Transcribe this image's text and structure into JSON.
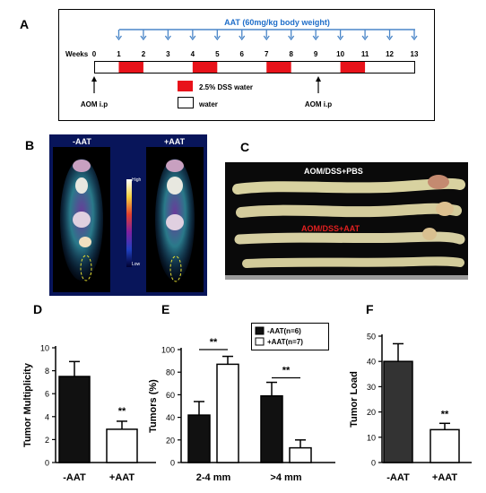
{
  "panel_labels": {
    "a": "A",
    "b": "B",
    "c": "C",
    "d": "D",
    "e": "E",
    "f": "F"
  },
  "schedule": {
    "aat_label": "AAT (60mg/kg body weight)",
    "weeks_label": "Weeks",
    "weeks": [
      "0",
      "1",
      "2",
      "3",
      "4",
      "5",
      "6",
      "7",
      "8",
      "9",
      "10",
      "11",
      "12",
      "13"
    ],
    "aat_weeks": [
      1,
      2,
      3,
      4,
      5,
      6,
      7,
      8,
      9,
      10,
      11,
      12,
      13
    ],
    "dss_periods": [
      [
        1,
        2
      ],
      [
        4,
        5
      ],
      [
        7,
        8
      ],
      [
        10,
        11
      ]
    ],
    "aom_label_1": "AOM i.p",
    "aom_label_2": "AOM i.p",
    "legend_dss": "2.5% DSS water",
    "legend_water": "water",
    "dss_color": "#e8121a"
  },
  "pet": {
    "label_minus": "-AAT",
    "label_plus": "+AAT",
    "scale_high": "High",
    "scale_low": "Low"
  },
  "colon_photo": {
    "label_pbs": "AOM/DSS+PBS",
    "label_aat": "AOM/DSS+AAT",
    "aat_color": "#e02020"
  },
  "chart_data": [
    {
      "type": "bar",
      "categories": [
        "-AAT",
        "+AAT"
      ],
      "values": [
        7.5,
        2.9
      ],
      "errors": [
        1.3,
        0.7
      ],
      "ylabel": "Tumor Multiplicity",
      "ylim": [
        0,
        10
      ],
      "yticks": [
        "0",
        "2",
        "4",
        "6",
        "8",
        "10"
      ],
      "significance": "**",
      "fills": [
        "#111111",
        "#ffffff"
      ]
    },
    {
      "type": "bar",
      "categories": [
        "2-4 mm",
        ">4 mm"
      ],
      "series": [
        {
          "name": "-AAT(n=6)",
          "values": [
            42,
            59
          ],
          "errors": [
            12,
            12
          ]
        },
        {
          "name": "+AAT(n=7)",
          "values": [
            87,
            13
          ],
          "errors": [
            7,
            7
          ]
        }
      ],
      "ylabel": "Tumors (%)",
      "ylim": [
        0,
        100
      ],
      "yticks": [
        "0",
        "20",
        "40",
        "60",
        "80",
        "100"
      ],
      "significance": [
        "**",
        "**"
      ],
      "legend_position": "top-right",
      "fills": [
        "#111111",
        "#ffffff"
      ]
    },
    {
      "type": "bar",
      "categories": [
        "-AAT",
        "+AAT"
      ],
      "values": [
        40,
        13
      ],
      "errors": [
        7,
        2.5
      ],
      "ylabel": "Tumor Load",
      "ylim": [
        0,
        50
      ],
      "yticks": [
        "0",
        "10",
        "20",
        "30",
        "40",
        "50"
      ],
      "significance": "**",
      "fills": [
        "#333333",
        "#ffffff"
      ]
    }
  ]
}
